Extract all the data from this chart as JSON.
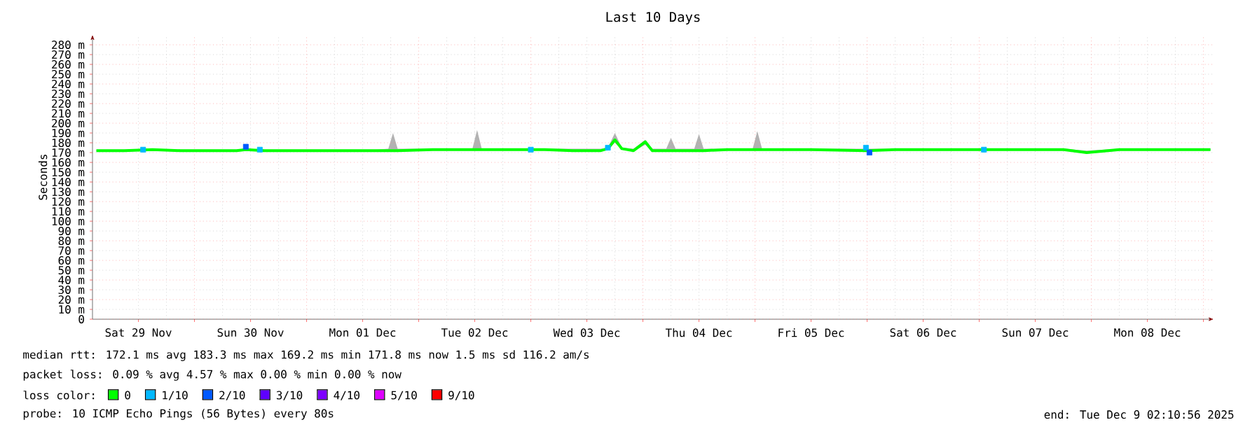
{
  "chart_data": {
    "type": "line",
    "title": "Last 10 Days",
    "ylabel": "Seconds",
    "legend_title": "loss color:",
    "legend": "bottom",
    "grid": true,
    "xlim": [
      "2025-11-29T02:10",
      "2025-12-09T02:10"
    ],
    "xticks": [
      {
        "value": "2025-11-29T12:00",
        "label": "Sat 29 Nov"
      },
      {
        "value": "2025-11-30T00:00",
        "label": null
      },
      {
        "value": "2025-11-30T12:00",
        "label": "Sun 30 Nov"
      },
      {
        "value": "2025-12-01T00:00",
        "label": null
      },
      {
        "value": "2025-12-01T12:00",
        "label": "Mon 01 Dec"
      },
      {
        "value": "2025-12-02T00:00",
        "label": null
      },
      {
        "value": "2025-12-02T12:00",
        "label": "Tue 02 Dec"
      },
      {
        "value": "2025-12-03T00:00",
        "label": null
      },
      {
        "value": "2025-12-03T12:00",
        "label": "Wed 03 Dec"
      },
      {
        "value": "2025-12-04T00:00",
        "label": null
      },
      {
        "value": "2025-12-04T12:00",
        "label": "Thu 04 Dec"
      },
      {
        "value": "2025-12-05T00:00",
        "label": null
      },
      {
        "value": "2025-12-05T12:00",
        "label": "Fri 05 Dec"
      },
      {
        "value": "2025-12-06T00:00",
        "label": null
      },
      {
        "value": "2025-12-06T12:00",
        "label": "Sat 06 Dec"
      },
      {
        "value": "2025-12-07T00:00",
        "label": null
      },
      {
        "value": "2025-12-07T12:00",
        "label": "Sun 07 Dec"
      },
      {
        "value": "2025-12-08T00:00",
        "label": null
      },
      {
        "value": "2025-12-08T12:00",
        "label": "Mon 08 Dec"
      },
      {
        "value": "2025-12-09T00:00",
        "label": null
      }
    ],
    "ylim": [
      0,
      290
    ],
    "yticks": [
      0,
      {
        "value": 10,
        "label": "10 m"
      },
      {
        "value": 20,
        "label": "20 m"
      },
      {
        "value": 30,
        "label": "30 m"
      },
      {
        "value": 40,
        "label": "40 m"
      },
      {
        "value": 50,
        "label": "50 m"
      },
      {
        "value": 60,
        "label": "60 m"
      },
      {
        "value": 70,
        "label": "70 m"
      },
      {
        "value": 80,
        "label": "80 m"
      },
      {
        "value": 90,
        "label": "90 m"
      },
      {
        "value": 100,
        "label": "100 m"
      },
      {
        "value": 110,
        "label": "110 m"
      },
      {
        "value": 120,
        "label": "120 m"
      },
      {
        "value": 130,
        "label": "130 m"
      },
      {
        "value": 140,
        "label": "140 m"
      },
      {
        "value": 150,
        "label": "150 m"
      },
      {
        "value": 160,
        "label": "160 m"
      },
      {
        "value": 170,
        "label": "170 m"
      },
      {
        "value": 180,
        "label": "180 m"
      },
      {
        "value": 190,
        "label": "190 m"
      },
      {
        "value": 200,
        "label": "200 m"
      },
      {
        "value": 210,
        "label": "210 m"
      },
      {
        "value": 220,
        "label": "220 m"
      },
      {
        "value": 230,
        "label": "230 m"
      },
      {
        "value": 240,
        "label": "240 m"
      },
      {
        "value": 250,
        "label": "250 m"
      },
      {
        "value": 260,
        "label": "260 m"
      },
      {
        "value": 270,
        "label": "270 m"
      },
      {
        "value": 280,
        "label": "280 m"
      }
    ],
    "series": [
      {
        "name": "0",
        "color": "#00ff00",
        "x": [
          "2025-11-29T03:00",
          "2025-11-29T09:00",
          "2025-11-29T15:00",
          "2025-11-29T21:00",
          "2025-11-30T03:00",
          "2025-11-30T09:00",
          "2025-11-30T11:00",
          "2025-11-30T15:00",
          "2025-11-30T21:00",
          "2025-12-01T03:00",
          "2025-12-01T09:00",
          "2025-12-01T15:00",
          "2025-12-01T17:30",
          "2025-12-01T18:30",
          "2025-12-01T19:30",
          "2025-12-02T03:00",
          "2025-12-02T09:00",
          "2025-12-02T11:30",
          "2025-12-02T12:30",
          "2025-12-02T13:30",
          "2025-12-02T21:00",
          "2025-12-03T03:00",
          "2025-12-03T09:00",
          "2025-12-03T15:00",
          "2025-12-03T16:30",
          "2025-12-03T18:00",
          "2025-12-03T19:30",
          "2025-12-03T22:00",
          "2025-12-04T00:30",
          "2025-12-04T02:00",
          "2025-12-04T05:00",
          "2025-12-04T06:00",
          "2025-12-04T07:00",
          "2025-12-04T11:00",
          "2025-12-04T12:00",
          "2025-12-04T13:00",
          "2025-12-04T18:00",
          "2025-12-04T23:30",
          "2025-12-05T00:30",
          "2025-12-05T01:30",
          "2025-12-05T12:00",
          "2025-12-05T23:45",
          "2025-12-06T06:00",
          "2025-12-06T18:00",
          "2025-12-07T06:00",
          "2025-12-07T18:00",
          "2025-12-07T23:00",
          "2025-12-08T06:00",
          "2025-12-08T18:00",
          "2025-12-09T01:30"
        ],
        "values": [
          172,
          172,
          173,
          172,
          172,
          172,
          173,
          172,
          172,
          172,
          172,
          172,
          172,
          172,
          172,
          173,
          173,
          173,
          173,
          173,
          173,
          173,
          172,
          172,
          174,
          183,
          174,
          172,
          181,
          172,
          172,
          172,
          172,
          172,
          172,
          172,
          173,
          173,
          173,
          173,
          173,
          172,
          173,
          173,
          173,
          173,
          170,
          173,
          173,
          173
        ],
        "lower": [
          171,
          171,
          172,
          171,
          171,
          171,
          172,
          171,
          171,
          171,
          171,
          171,
          171,
          171,
          171,
          172,
          172,
          172,
          172,
          172,
          172,
          172,
          171,
          171,
          173,
          180,
          173,
          171,
          178,
          171,
          171,
          171,
          171,
          171,
          171,
          171,
          172,
          172,
          172,
          172,
          172,
          171,
          172,
          172,
          172,
          172,
          169,
          172,
          172,
          172
        ],
        "upper": [
          173,
          173,
          174,
          173,
          173,
          173,
          174,
          173,
          173,
          173,
          173,
          173,
          174,
          190,
          174,
          174,
          174,
          174,
          193,
          174,
          174,
          174,
          174,
          174,
          175,
          190,
          175,
          174,
          183,
          174,
          174,
          185,
          174,
          174,
          189,
          174,
          174,
          174,
          192,
          174,
          174,
          174,
          174,
          174,
          174,
          174,
          172,
          174,
          174,
          174
        ]
      },
      {
        "name": "1/10",
        "color": "#00b8ff",
        "type": "scatter",
        "x": [
          "2025-11-29T13:00",
          "2025-11-30T14:00",
          "2025-12-03T00:00",
          "2025-12-03T16:30",
          "2025-12-05T23:45",
          "2025-12-07T01:00"
        ],
        "values": [
          173,
          173,
          173,
          175,
          175,
          173
        ]
      },
      {
        "name": "2/10",
        "color": "#0059ff",
        "type": "scatter",
        "x": [
          "2025-11-30T11:00",
          "2025-12-06T00:30"
        ],
        "values": [
          176,
          170
        ]
      },
      {
        "name": "3/10",
        "color": "#5e00ff"
      },
      {
        "name": "4/10",
        "color": "#7e00ff"
      },
      {
        "name": "5/10",
        "color": "#dd00ff"
      },
      {
        "name": "9/10",
        "color": "#ff0000"
      }
    ],
    "annotations": [
      "median rtt: 172.1 ms avg 183.3 ms max 169.2 ms min 171.8 ms now 1.5 ms sd 116.2 am/s",
      "packet loss: 0.09 % avg 4.57 % max 0.00 % min 0.00 % now",
      "probe: 10 ICMP Echo Pings (56 Bytes) every 80s",
      "end: Tue Dec 9 02:10:56 2025"
    ]
  }
}
